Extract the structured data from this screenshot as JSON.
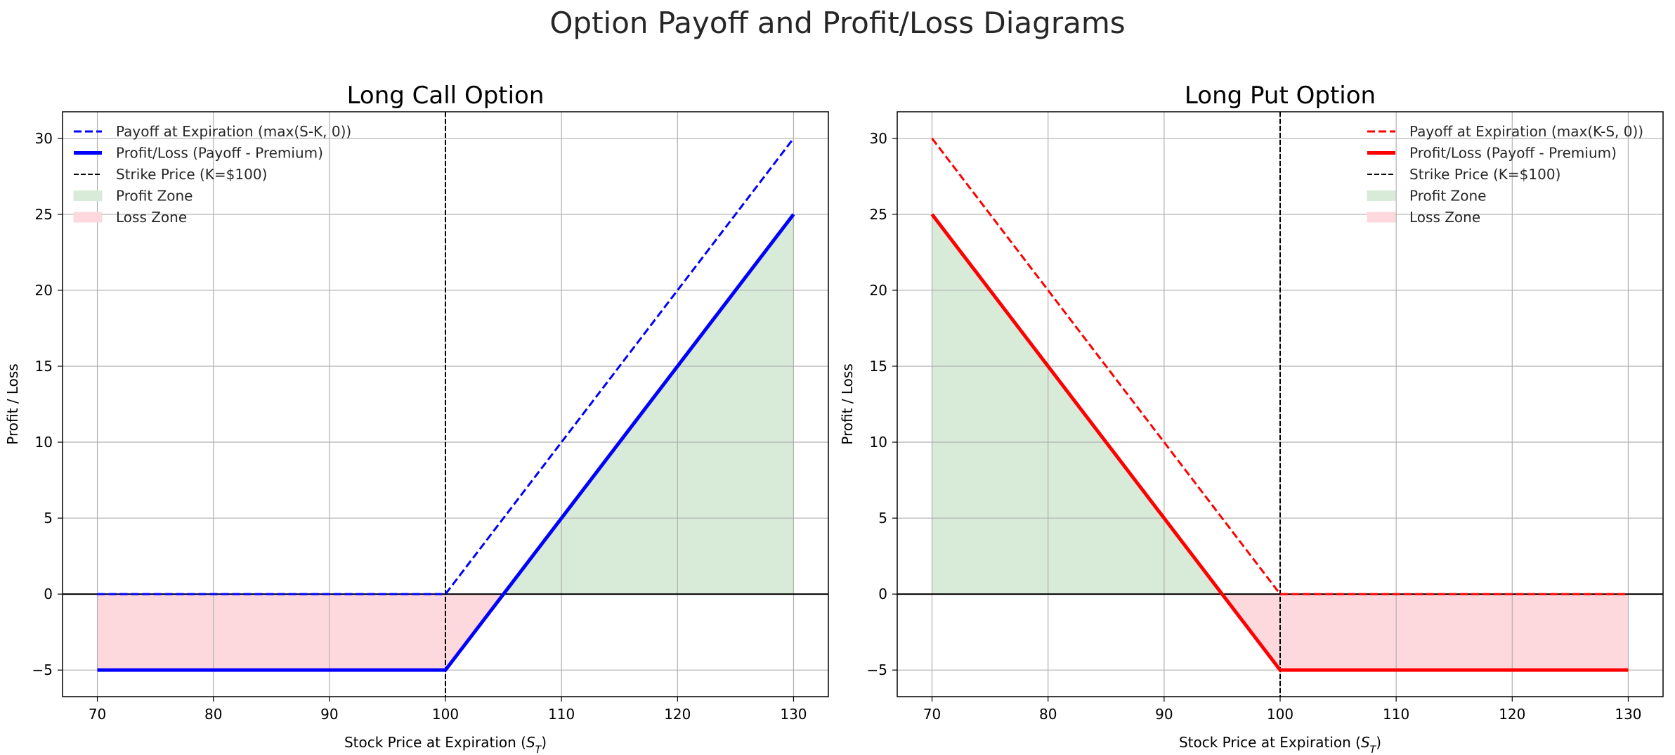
{
  "figure": {
    "suptitle": "Option Payoff and Profit/Loss Diagrams"
  },
  "colors": {
    "call": "#0000ff",
    "put": "#ff0000",
    "strike": "#000000",
    "profit_fill": "#d8ead8",
    "loss_fill": "#fdd9de",
    "grid": "#b0b0b0"
  },
  "chart_data": [
    {
      "type": "line",
      "title": "Long Call Option",
      "xlabel_prefix": "Stock Price at Expiration (",
      "xlabel_symbol": "S",
      "xlabel_subscript": "T",
      "xlabel_suffix": ")",
      "ylabel": "Profit / Loss",
      "xlim": [
        67,
        133
      ],
      "ylim": [
        -6.75,
        31.75
      ],
      "xticks": [
        70,
        80,
        90,
        100,
        110,
        120,
        130
      ],
      "yticks": [
        -5,
        0,
        5,
        10,
        15,
        20,
        25,
        30
      ],
      "grid": true,
      "legend_position": "upper-left",
      "strike": 100,
      "series": [
        {
          "name": "Payoff at Expiration (max(S-K, 0))",
          "style": "dashed",
          "color": "#0000ff",
          "x": [
            70,
            100,
            130
          ],
          "y": [
            0,
            0,
            30
          ]
        },
        {
          "name": "Profit/Loss (Payoff - Premium)",
          "style": "solid-thick",
          "color": "#0000ff",
          "x": [
            70,
            100,
            130
          ],
          "y": [
            -5,
            -5,
            25
          ]
        }
      ],
      "strike_label": "Strike Price (K=$100)",
      "profit_label": "Profit Zone",
      "loss_label": "Loss Zone"
    },
    {
      "type": "line",
      "title": "Long Put Option",
      "xlabel_prefix": "Stock Price at Expiration (",
      "xlabel_symbol": "S",
      "xlabel_subscript": "T",
      "xlabel_suffix": ")",
      "ylabel": "Profit / Loss",
      "xlim": [
        67,
        133
      ],
      "ylim": [
        -6.75,
        31.75
      ],
      "xticks": [
        70,
        80,
        90,
        100,
        110,
        120,
        130
      ],
      "yticks": [
        -5,
        0,
        5,
        10,
        15,
        20,
        25,
        30
      ],
      "grid": true,
      "legend_position": "upper-right",
      "strike": 100,
      "series": [
        {
          "name": "Payoff at Expiration (max(K-S, 0))",
          "style": "dashed",
          "color": "#ff0000",
          "x": [
            70,
            100,
            130
          ],
          "y": [
            30,
            0,
            0
          ]
        },
        {
          "name": "Profit/Loss (Payoff - Premium)",
          "style": "solid-thick",
          "color": "#ff0000",
          "x": [
            70,
            100,
            130
          ],
          "y": [
            25,
            -5,
            -5
          ]
        }
      ],
      "strike_label": "Strike Price (K=$100)",
      "profit_label": "Profit Zone",
      "loss_label": "Loss Zone"
    }
  ]
}
